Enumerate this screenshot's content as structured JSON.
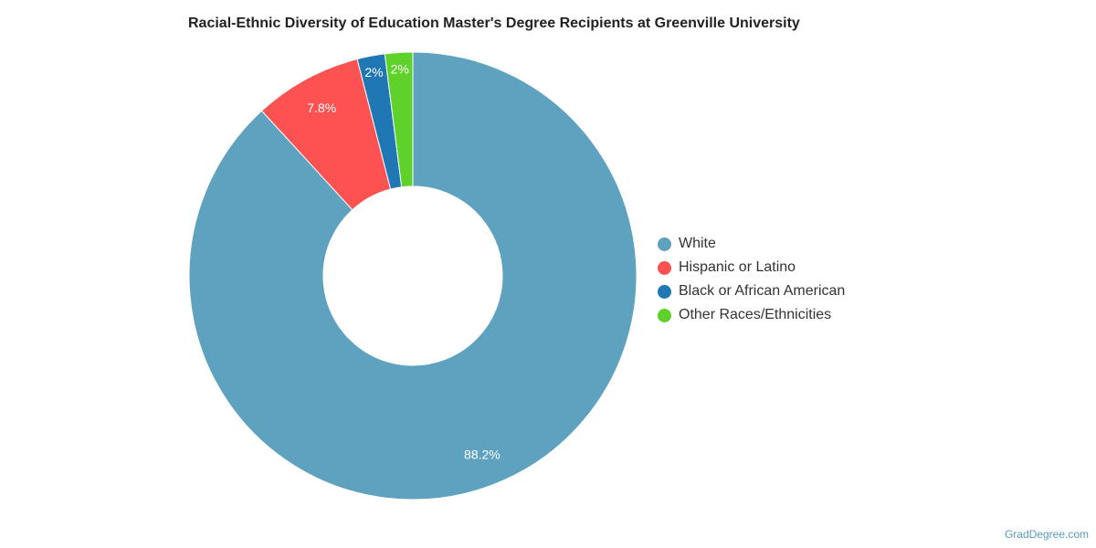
{
  "chart_data": {
    "type": "pie",
    "style": "donut",
    "title": "Racial-Ethnic Diversity of Education Master's Degree Recipients at Greenville University",
    "categories": [
      "White",
      "Hispanic or Latino",
      "Black or African American",
      "Other Races/Ethnicities"
    ],
    "values": [
      88.2,
      7.8,
      2,
      2
    ],
    "value_labels": [
      "88.2%",
      "7.8%",
      "2%",
      "2%"
    ],
    "colors": [
      "#5ea2bf",
      "#fc5252",
      "#1f77b4",
      "#5fd12b"
    ],
    "legend": "right"
  },
  "credit": "GradDegree.com"
}
